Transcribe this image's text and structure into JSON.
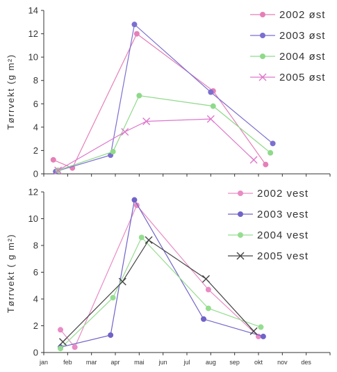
{
  "chart_data": [
    {
      "type": "line",
      "ylabel": "Tørrvekt (g m²)",
      "ylim": [
        0,
        14
      ],
      "yticks": [
        0,
        2,
        4,
        6,
        8,
        10,
        12,
        14
      ],
      "xlim": [
        1,
        13
      ],
      "legend_position": "right",
      "series": [
        {
          "name": "2002 øst",
          "color": "#e57fb8",
          "marker": "circle",
          "points": [
            [
              1.4,
              1.2
            ],
            [
              2.2,
              0.5
            ],
            [
              4.9,
              12.0
            ],
            [
              8.1,
              7.1
            ],
            [
              10.3,
              0.8
            ]
          ]
        },
        {
          "name": "2003 øst",
          "color": "#7b6fd0",
          "marker": "circle",
          "points": [
            [
              1.5,
              0.2
            ],
            [
              3.8,
              1.6
            ],
            [
              4.8,
              12.8
            ],
            [
              8.0,
              7.0
            ],
            [
              10.6,
              2.6
            ]
          ]
        },
        {
          "name": "2004 øst",
          "color": "#8fd98a",
          "marker": "circle",
          "points": [
            [
              1.6,
              0.3
            ],
            [
              3.9,
              1.9
            ],
            [
              5.0,
              6.7
            ],
            [
              8.1,
              5.8
            ],
            [
              10.5,
              1.8
            ]
          ]
        },
        {
          "name": "2005 øst",
          "color": "#dd77cc",
          "marker": "x",
          "points": [
            [
              1.6,
              0.3
            ],
            [
              4.4,
              3.6
            ],
            [
              5.3,
              4.5
            ],
            [
              8.0,
              4.7
            ],
            [
              9.8,
              1.2
            ]
          ]
        }
      ]
    },
    {
      "type": "line",
      "ylabel": "Tørrvekt ( g m²)",
      "ylim": [
        0,
        12
      ],
      "yticks": [
        0,
        2,
        4,
        6,
        8,
        10,
        12
      ],
      "xlim": [
        1,
        13
      ],
      "xticks": [
        "jan",
        "feb",
        "mar",
        "apr",
        "mai",
        "jun",
        "jul",
        "aug",
        "sep",
        "okt",
        "nov",
        "des"
      ],
      "legend_position": "right",
      "series": [
        {
          "name": "2002 vest",
          "color": "#e98bc4",
          "marker": "circle",
          "points": [
            [
              1.7,
              1.7
            ],
            [
              2.3,
              0.4
            ],
            [
              4.9,
              11.0
            ],
            [
              7.9,
              4.7
            ],
            [
              10.0,
              1.2
            ]
          ]
        },
        {
          "name": "2003 vest",
          "color": "#6f63c8",
          "marker": "circle",
          "points": [
            [
              1.7,
              0.4
            ],
            [
              3.8,
              1.3
            ],
            [
              4.8,
              11.4
            ],
            [
              7.7,
              2.5
            ],
            [
              10.2,
              1.2
            ]
          ]
        },
        {
          "name": "2004 vest",
          "color": "#95dd90",
          "marker": "circle",
          "points": [
            [
              1.7,
              0.3
            ],
            [
              3.9,
              4.1
            ],
            [
              5.1,
              8.6
            ],
            [
              7.9,
              3.3
            ],
            [
              10.1,
              1.9
            ]
          ]
        },
        {
          "name": "2005 vest",
          "color": "#444444",
          "marker": "x",
          "points": [
            [
              1.8,
              0.8
            ],
            [
              4.3,
              5.3
            ],
            [
              5.4,
              8.4
            ],
            [
              7.8,
              5.5
            ],
            [
              9.8,
              1.6
            ]
          ]
        }
      ]
    }
  ]
}
